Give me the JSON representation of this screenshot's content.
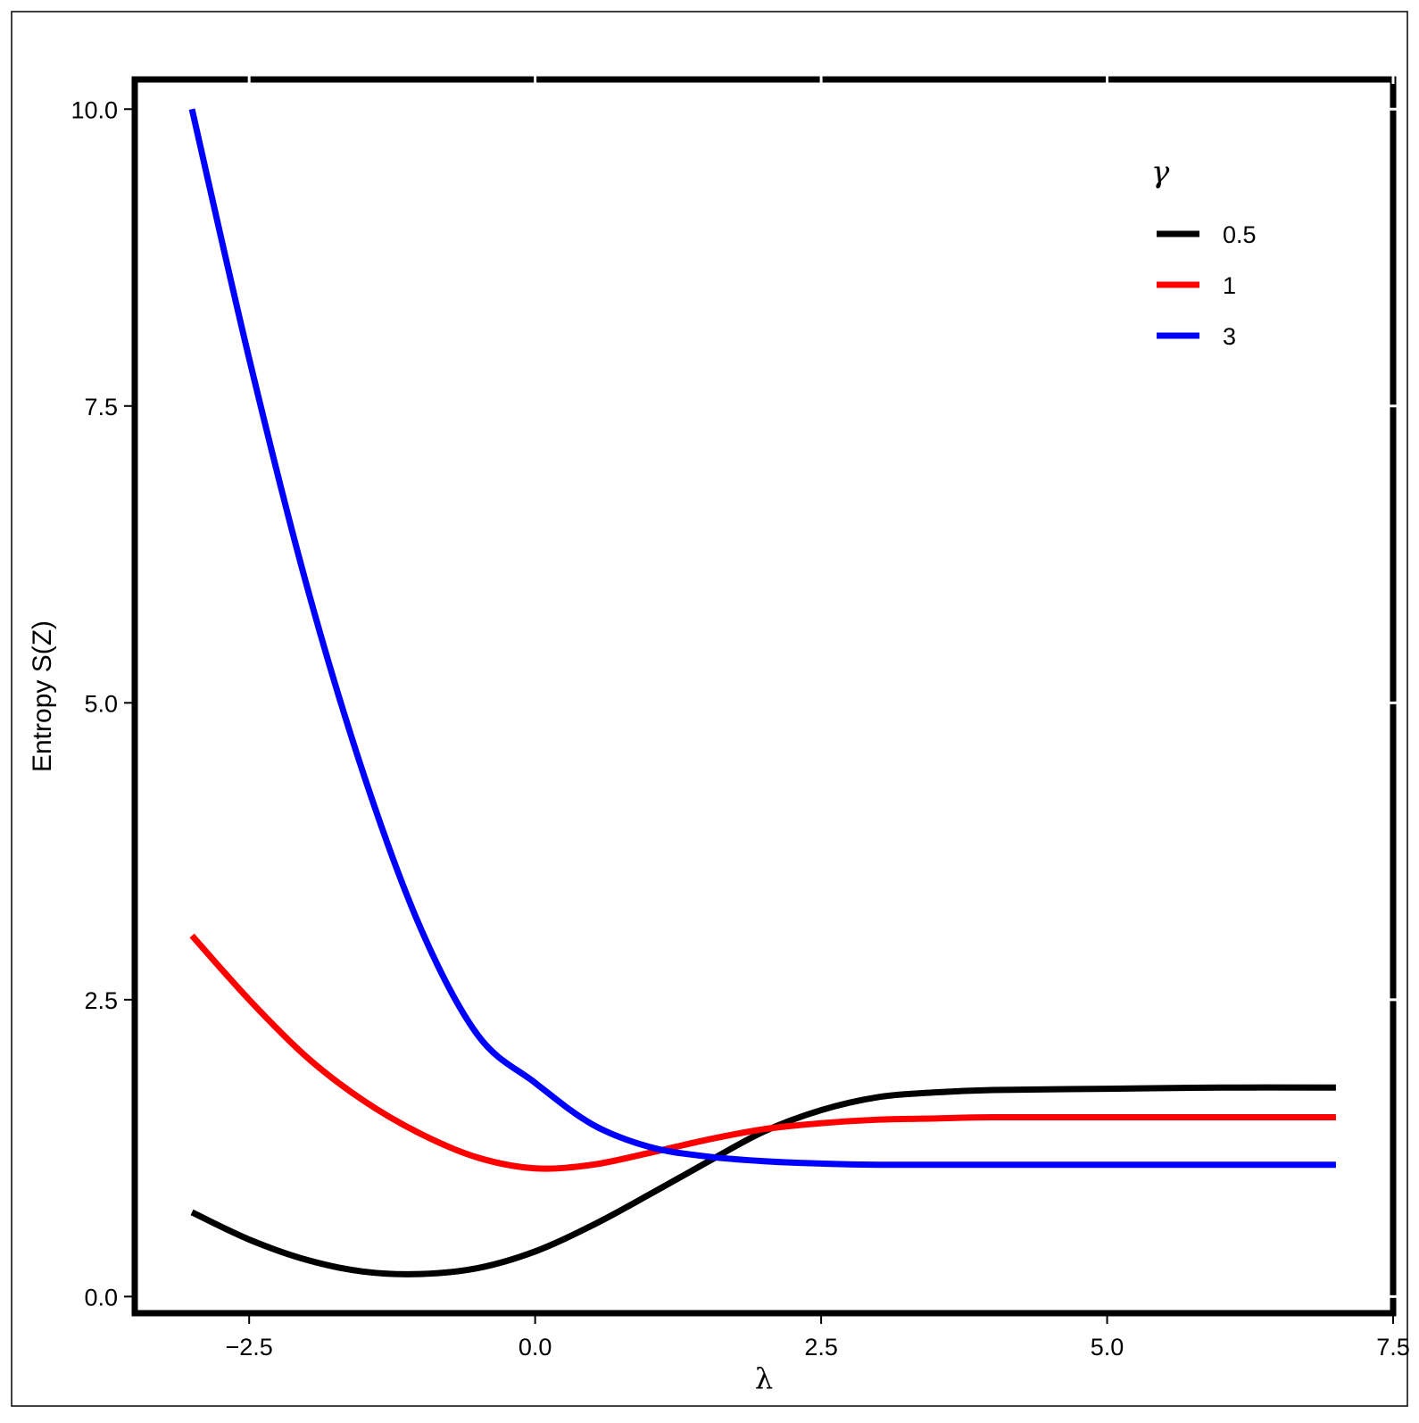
{
  "chart_data": {
    "type": "line",
    "title": "",
    "xlabel": "λ",
    "ylabel": "Entropy S(Z)",
    "xlim": [
      -3.5,
      7.5
    ],
    "ylim": [
      -0.14,
      10.25
    ],
    "x_ticks": [
      -2.5,
      0.0,
      2.5,
      5.0,
      7.5
    ],
    "x_tick_labels": [
      "−2.5",
      "0.0",
      "2.5",
      "5.0",
      "7.5"
    ],
    "y_ticks": [
      0.0,
      2.5,
      5.0,
      7.5,
      10.0
    ],
    "y_tick_labels": [
      "0.0",
      "2.5",
      "5.0",
      "7.5",
      "10.0"
    ],
    "grid": false,
    "legend": {
      "title": "γ",
      "position": "top-right"
    },
    "series": [
      {
        "name": "0.5",
        "color": "#000000",
        "x": [
          -3.0,
          -2.5,
          -2.0,
          -1.5,
          -1.0,
          -0.5,
          0.0,
          0.5,
          1.0,
          1.5,
          2.0,
          2.5,
          3.0,
          3.5,
          4.0,
          5.0,
          6.0,
          7.0
        ],
        "y": [
          0.71,
          0.48,
          0.31,
          0.21,
          0.19,
          0.24,
          0.38,
          0.6,
          0.86,
          1.13,
          1.39,
          1.57,
          1.68,
          1.72,
          1.74,
          1.75,
          1.76,
          1.76
        ]
      },
      {
        "name": "1",
        "color": "#ff0000",
        "x": [
          -3.0,
          -2.5,
          -2.0,
          -1.5,
          -1.0,
          -0.5,
          0.0,
          0.5,
          1.0,
          1.5,
          2.0,
          2.5,
          3.0,
          3.5,
          4.0,
          5.0,
          6.0,
          7.0
        ],
        "y": [
          3.04,
          2.5,
          2.02,
          1.65,
          1.37,
          1.17,
          1.08,
          1.11,
          1.21,
          1.32,
          1.41,
          1.46,
          1.49,
          1.5,
          1.51,
          1.51,
          1.51,
          1.51
        ]
      },
      {
        "name": "3",
        "color": "#0000ff",
        "x": [
          -3.0,
          -2.5,
          -2.0,
          -1.5,
          -1.0,
          -0.5,
          0.0,
          0.5,
          1.0,
          1.5,
          2.0,
          2.5,
          3.0,
          4.0,
          5.0,
          6.0,
          7.0
        ],
        "y": [
          10.0,
          7.9,
          6.0,
          4.4,
          3.1,
          2.2,
          1.8,
          1.45,
          1.26,
          1.18,
          1.14,
          1.12,
          1.11,
          1.11,
          1.11,
          1.11,
          1.11
        ]
      }
    ]
  }
}
